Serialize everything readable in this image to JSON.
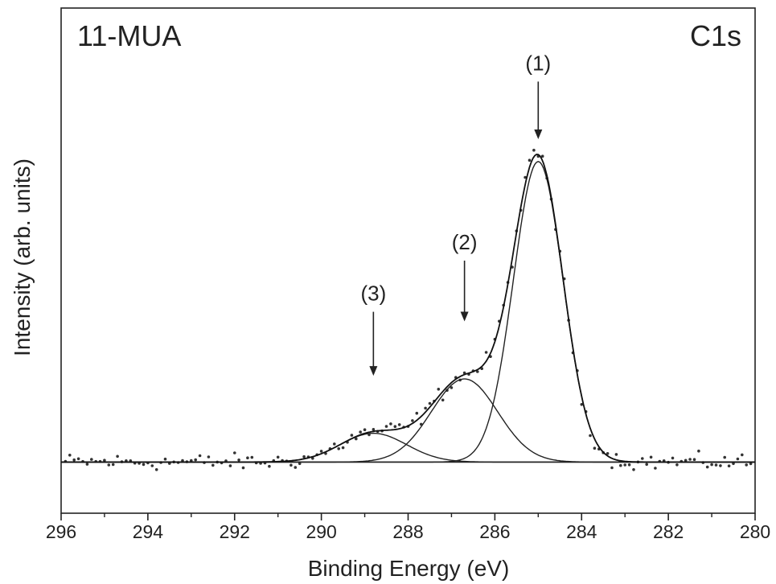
{
  "chart_data": {
    "type": "scatter",
    "title": "",
    "panel_label": "11-MUA",
    "region_label": "C1s",
    "xlabel": "Binding Energy (eV)",
    "ylabel": "Intensity (arb. units)",
    "x_reversed": true,
    "xlim": [
      296,
      280
    ],
    "ylim": [
      -0.16,
      1.42
    ],
    "x_ticks": [
      296,
      294,
      292,
      290,
      288,
      286,
      284,
      282,
      280
    ],
    "y_ticks_shown": false,
    "grid": false,
    "legend": "none",
    "baseline": 0,
    "components": [
      {
        "label": "(1)",
        "center": 285.0,
        "height": 0.94,
        "fwhm": 1.35
      },
      {
        "label": "(2)",
        "center": 286.7,
        "height": 0.26,
        "fwhm": 1.8
      },
      {
        "label": "(3)",
        "center": 288.8,
        "height": 0.09,
        "fwhm": 1.8
      }
    ],
    "annotations": [
      {
        "text": "(1)",
        "x": 285.0,
        "arrow_from_y": 1.19,
        "arrow_to_y": 1.01
      },
      {
        "text": "(2)",
        "x": 286.7,
        "arrow_from_y": 0.63,
        "arrow_to_y": 0.44
      },
      {
        "text": "(3)",
        "x": 288.8,
        "arrow_from_y": 0.47,
        "arrow_to_y": 0.27
      }
    ],
    "data_points": {
      "x_start": 295.9,
      "x_end": 280.1,
      "step": 0.1,
      "noise": 0.016
    }
  }
}
